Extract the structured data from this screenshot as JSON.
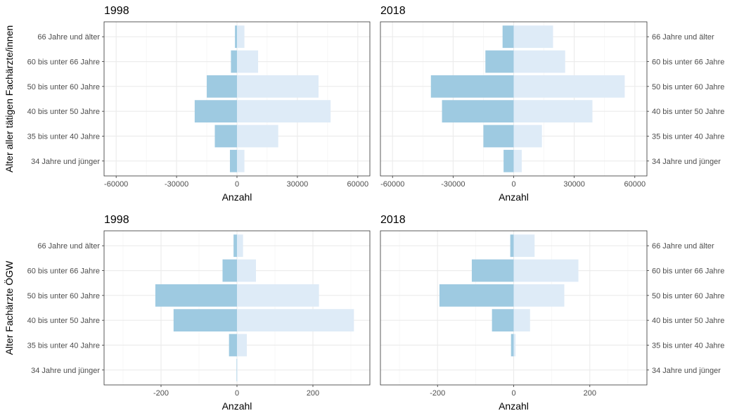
{
  "chart_data": [
    {
      "type": "bar",
      "title": "1998",
      "xlabel": "Anzahl",
      "ylabel": "Alter aller tätigen Fachärzte/innen",
      "categories": [
        "34 Jahre und jünger",
        "35 bis unter 40 Jahre",
        "40 bis unter 50 Jahre",
        "50 bis unter 60 Jahre",
        "60 bis unter 66 Jahre",
        "66 Jahre und älter"
      ],
      "xlim": [
        -66000,
        66000
      ],
      "xticks": [
        -60000,
        -30000,
        0,
        30000,
        60000
      ],
      "xtick_labels": [
        "-60000",
        "-30000",
        "0",
        "30000",
        "60000"
      ],
      "series": [
        {
          "values": [
            -3500,
            -11000,
            -21000,
            -15000,
            -3000,
            -1000
          ],
          "color": "#9ecae1"
        },
        {
          "values": [
            3700,
            20500,
            46500,
            40500,
            10500,
            3700
          ],
          "color": "#deebf7"
        }
      ]
    },
    {
      "type": "bar",
      "title": "2018",
      "xlabel": "Anzahl",
      "categories": [
        "34 Jahre und jünger",
        "35 bis unter 40 Jahre",
        "40 bis unter 50 Jahre",
        "50 bis unter 60 Jahre",
        "60 bis unter 66 Jahre",
        "66 Jahre und älter"
      ],
      "xlim": [
        -66000,
        66000
      ],
      "xticks": [
        -60000,
        -30000,
        0,
        30000,
        60000
      ],
      "xtick_labels": [
        "-60000",
        "-30000",
        "0",
        "30000",
        "60000"
      ],
      "series": [
        {
          "values": [
            -5000,
            -15000,
            -35500,
            -41000,
            -14000,
            -5500
          ],
          "color": "#9ecae1"
        },
        {
          "values": [
            4000,
            14000,
            39000,
            55000,
            25500,
            19500
          ],
          "color": "#deebf7"
        }
      ]
    },
    {
      "type": "bar",
      "title": "1998",
      "xlabel": "Anzahl",
      "ylabel": "Alter Fachärzte ÖGW",
      "categories": [
        "34 Jahre und jünger",
        "35 bis unter 40 Jahre",
        "40 bis unter 50 Jahre",
        "50 bis unter 60 Jahre",
        "60 bis unter 66 Jahre",
        "66 Jahre und älter"
      ],
      "xlim": [
        -350,
        350
      ],
      "xticks": [
        -200,
        0,
        200
      ],
      "xtick_labels": [
        "-200",
        "0",
        "200"
      ],
      "series": [
        {
          "values": [
            -1,
            -21,
            -167,
            -215,
            -38,
            -9
          ],
          "color": "#9ecae1"
        },
        {
          "values": [
            1,
            26,
            308,
            216,
            50,
            16
          ],
          "color": "#deebf7"
        }
      ]
    },
    {
      "type": "bar",
      "title": "2018",
      "xlabel": "Anzahl",
      "categories": [
        "34 Jahre und jünger",
        "35 bis unter 40 Jahre",
        "40 bis unter 50 Jahre",
        "50 bis unter 60 Jahre",
        "60 bis unter 66 Jahre",
        "66 Jahre und älter"
      ],
      "xlim": [
        -350,
        350
      ],
      "xticks": [
        -200,
        0,
        200
      ],
      "xtick_labels": [
        "-200",
        "0",
        "200"
      ],
      "series": [
        {
          "values": [
            0,
            -7,
            -57,
            -195,
            -110,
            -9
          ],
          "color": "#9ecae1"
        },
        {
          "values": [
            0,
            5,
            43,
            133,
            170,
            55
          ],
          "color": "#deebf7"
        }
      ]
    }
  ]
}
